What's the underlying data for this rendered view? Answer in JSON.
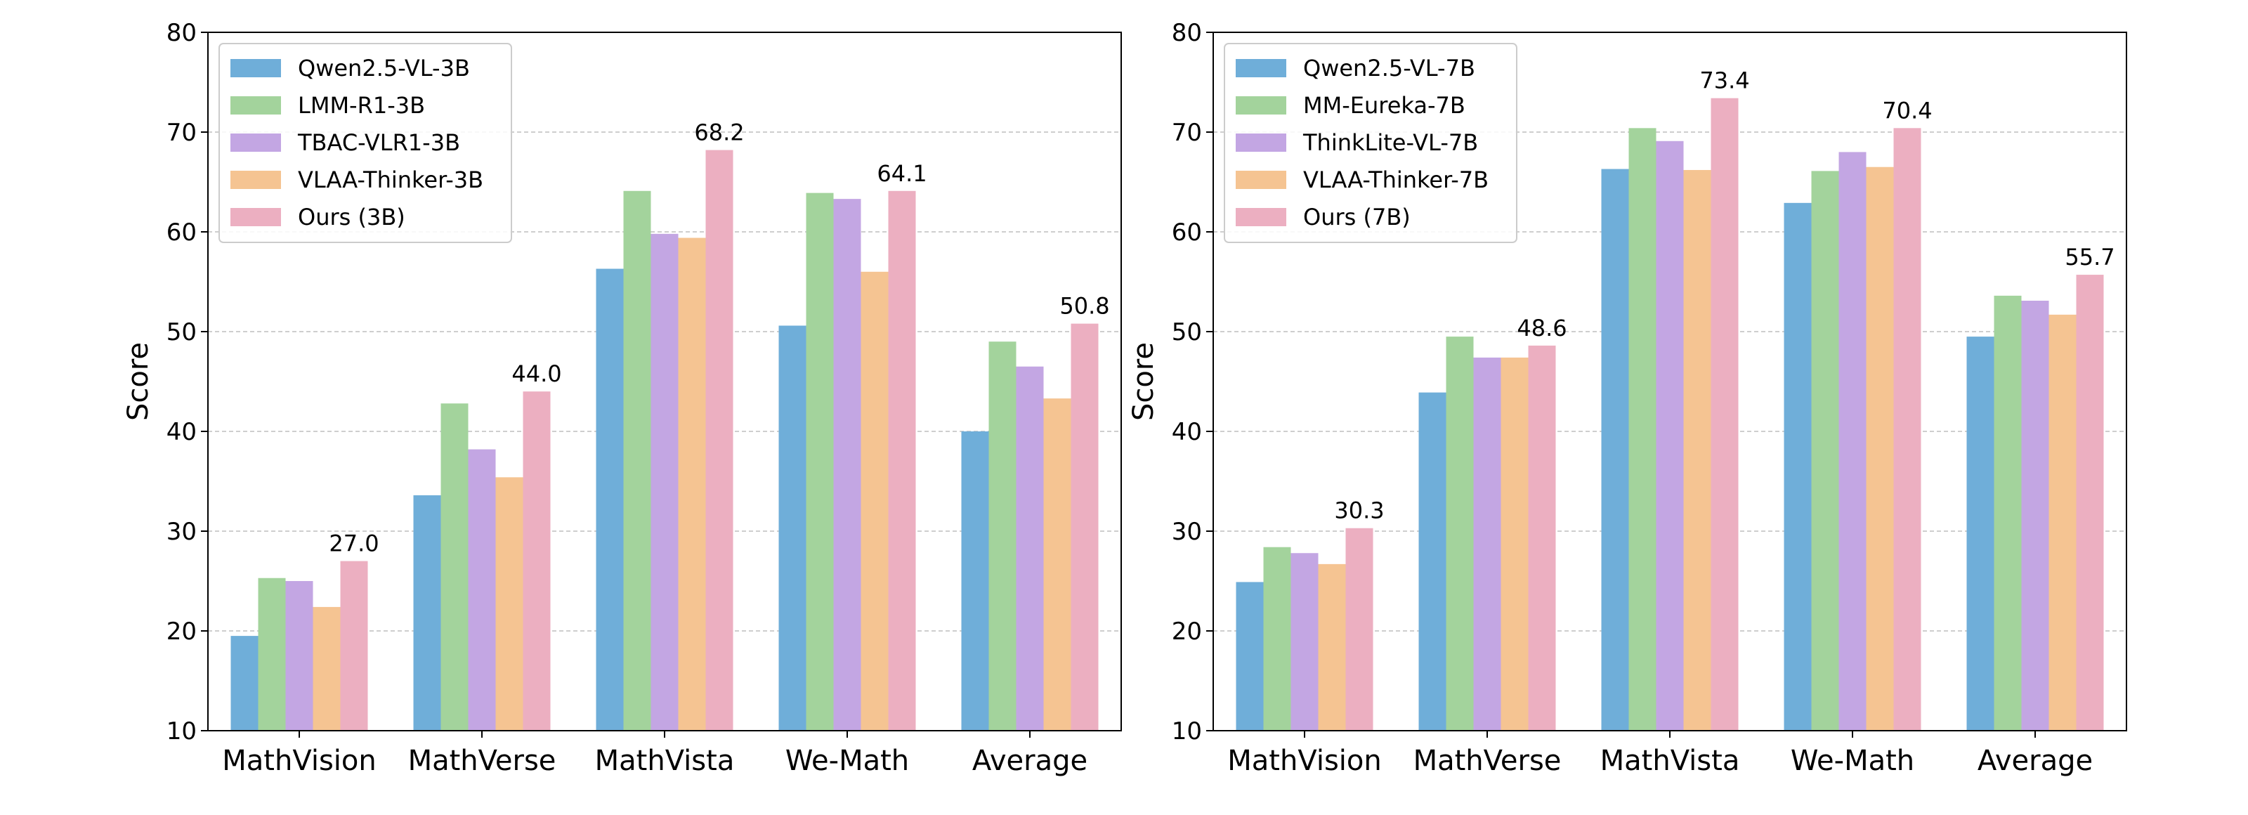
{
  "chart_data": [
    {
      "type": "bar",
      "title": "",
      "xlabel": "",
      "ylabel": "Score",
      "ylim": [
        10,
        80
      ],
      "yticks": [
        10,
        20,
        30,
        40,
        50,
        60,
        70,
        80
      ],
      "grid": true,
      "legend_position": "top-left",
      "categories": [
        "MathVision",
        "MathVerse",
        "MathVista",
        "We-Math",
        "Average"
      ],
      "series": [
        {
          "name": "Qwen2.5-VL-3B",
          "color": "#6FAED9",
          "values": [
            19.5,
            33.6,
            56.3,
            50.6,
            40.0
          ]
        },
        {
          "name": "LMM-R1-3B",
          "color": "#A3D39C",
          "values": [
            25.3,
            42.8,
            64.1,
            63.9,
            49.0
          ]
        },
        {
          "name": "TBAC-VLR1-3B",
          "color": "#C3A6E3",
          "values": [
            25.0,
            38.2,
            59.8,
            63.3,
            46.5
          ]
        },
        {
          "name": "VLAA-Thinker-3B",
          "color": "#F5C492",
          "values": [
            22.4,
            35.4,
            59.4,
            56.0,
            43.3
          ]
        },
        {
          "name": "Ours (3B)",
          "color": "#ECAFC1",
          "values": [
            27.0,
            44.0,
            68.2,
            64.1,
            50.8
          ]
        }
      ],
      "annotations": [
        "27.0",
        "44.0",
        "68.2",
        "64.1",
        "50.8"
      ]
    },
    {
      "type": "bar",
      "title": "",
      "xlabel": "",
      "ylabel": "Score",
      "ylim": [
        10,
        80
      ],
      "yticks": [
        10,
        20,
        30,
        40,
        50,
        60,
        70,
        80
      ],
      "grid": true,
      "legend_position": "top-left",
      "categories": [
        "MathVision",
        "MathVerse",
        "MathVista",
        "We-Math",
        "Average"
      ],
      "series": [
        {
          "name": "Qwen2.5-VL-7B",
          "color": "#6FAED9",
          "values": [
            24.9,
            43.9,
            66.3,
            62.9,
            49.5
          ]
        },
        {
          "name": "MM-Eureka-7B",
          "color": "#A3D39C",
          "values": [
            28.4,
            49.5,
            70.4,
            66.1,
            53.6
          ]
        },
        {
          "name": "ThinkLite-VL-7B",
          "color": "#C3A6E3",
          "values": [
            27.8,
            47.4,
            69.1,
            68.0,
            53.1
          ]
        },
        {
          "name": "VLAA-Thinker-7B",
          "color": "#F5C492",
          "values": [
            26.7,
            47.4,
            66.2,
            66.5,
            51.7
          ]
        },
        {
          "name": "Ours (7B)",
          "color": "#ECAFC1",
          "values": [
            30.3,
            48.6,
            73.4,
            70.4,
            55.7
          ]
        }
      ],
      "annotations": [
        "30.3",
        "48.6",
        "73.4",
        "70.4",
        "55.7"
      ]
    }
  ]
}
